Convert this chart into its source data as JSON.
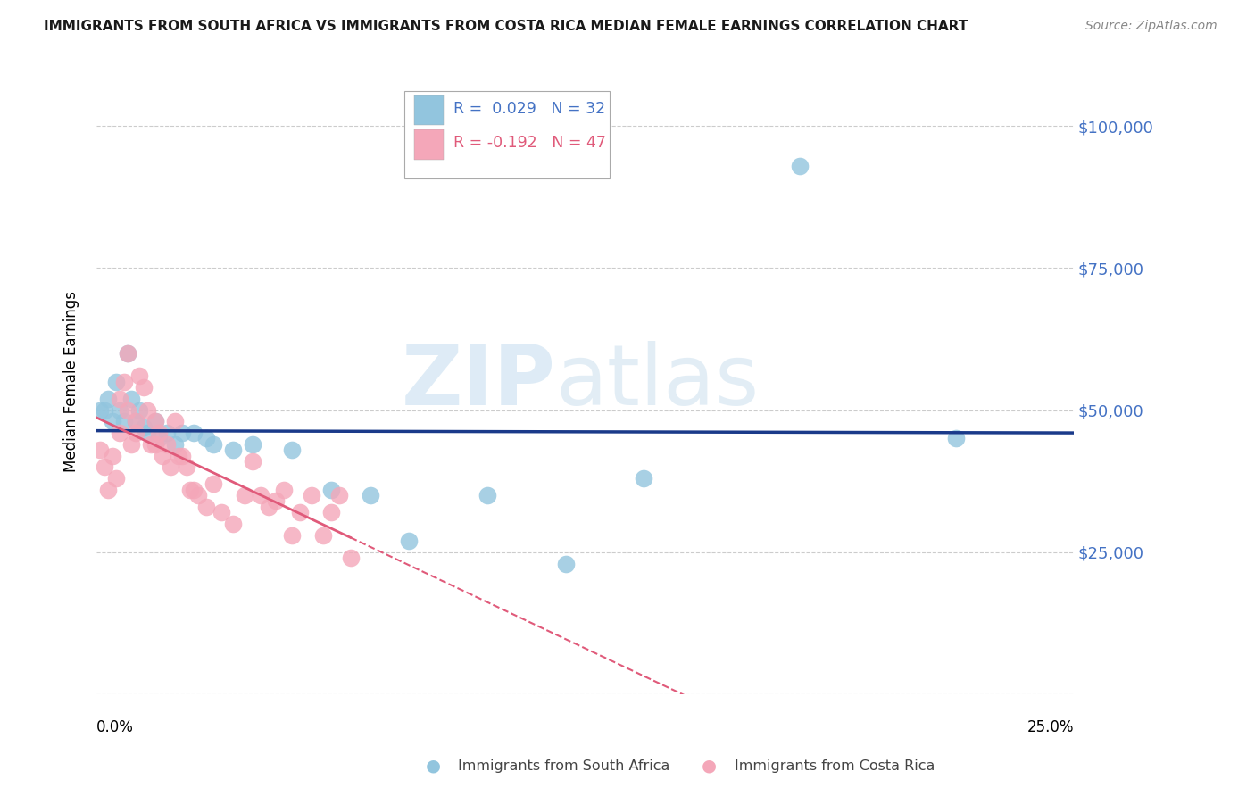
{
  "title": "IMMIGRANTS FROM SOUTH AFRICA VS IMMIGRANTS FROM COSTA RICA MEDIAN FEMALE EARNINGS CORRELATION CHART",
  "source": "Source: ZipAtlas.com",
  "ylabel": "Median Female Earnings",
  "xlim": [
    0.0,
    0.25
  ],
  "ylim": [
    0,
    110000
  ],
  "yticks": [
    0,
    25000,
    50000,
    75000,
    100000
  ],
  "ytick_labels": [
    "",
    "$25,000",
    "$50,000",
    "$75,000",
    "$100,000"
  ],
  "R_blue": 0.029,
  "N_blue": 32,
  "R_pink": -0.192,
  "N_pink": 47,
  "color_blue": "#92c5de",
  "color_pink": "#f4a7b9",
  "line_blue": "#1a3a8a",
  "line_pink": "#e05a7a",
  "legend_label_blue": "Immigrants from South Africa",
  "legend_label_pink": "Immigrants from Costa Rica",
  "blue_x": [
    0.001,
    0.002,
    0.003,
    0.004,
    0.005,
    0.006,
    0.007,
    0.008,
    0.009,
    0.01,
    0.011,
    0.012,
    0.013,
    0.015,
    0.016,
    0.018,
    0.02,
    0.022,
    0.025,
    0.028,
    0.03,
    0.035,
    0.04,
    0.05,
    0.06,
    0.07,
    0.08,
    0.1,
    0.12,
    0.14,
    0.18,
    0.22
  ],
  "blue_y": [
    50000,
    50000,
    52000,
    48000,
    55000,
    50000,
    48000,
    60000,
    52000,
    48000,
    50000,
    47000,
    46000,
    48000,
    45000,
    46000,
    44000,
    46000,
    46000,
    45000,
    44000,
    43000,
    44000,
    43000,
    36000,
    35000,
    27000,
    35000,
    23000,
    38000,
    93000,
    45000
  ],
  "pink_x": [
    0.001,
    0.002,
    0.003,
    0.004,
    0.005,
    0.006,
    0.006,
    0.007,
    0.008,
    0.008,
    0.009,
    0.01,
    0.01,
    0.011,
    0.012,
    0.013,
    0.014,
    0.015,
    0.015,
    0.016,
    0.017,
    0.018,
    0.019,
    0.02,
    0.021,
    0.022,
    0.023,
    0.024,
    0.025,
    0.026,
    0.028,
    0.03,
    0.032,
    0.035,
    0.038,
    0.04,
    0.042,
    0.044,
    0.046,
    0.048,
    0.05,
    0.052,
    0.055,
    0.058,
    0.06,
    0.062,
    0.065
  ],
  "pink_y": [
    43000,
    40000,
    36000,
    42000,
    38000,
    46000,
    52000,
    55000,
    50000,
    60000,
    44000,
    48000,
    46000,
    56000,
    54000,
    50000,
    44000,
    48000,
    44000,
    46000,
    42000,
    44000,
    40000,
    48000,
    42000,
    42000,
    40000,
    36000,
    36000,
    35000,
    33000,
    37000,
    32000,
    30000,
    35000,
    41000,
    35000,
    33000,
    34000,
    36000,
    28000,
    32000,
    35000,
    28000,
    32000,
    35000,
    24000
  ],
  "watermark_zip": "ZIP",
  "watermark_atlas": "atlas",
  "background_color": "#ffffff",
  "grid_color": "#cccccc"
}
